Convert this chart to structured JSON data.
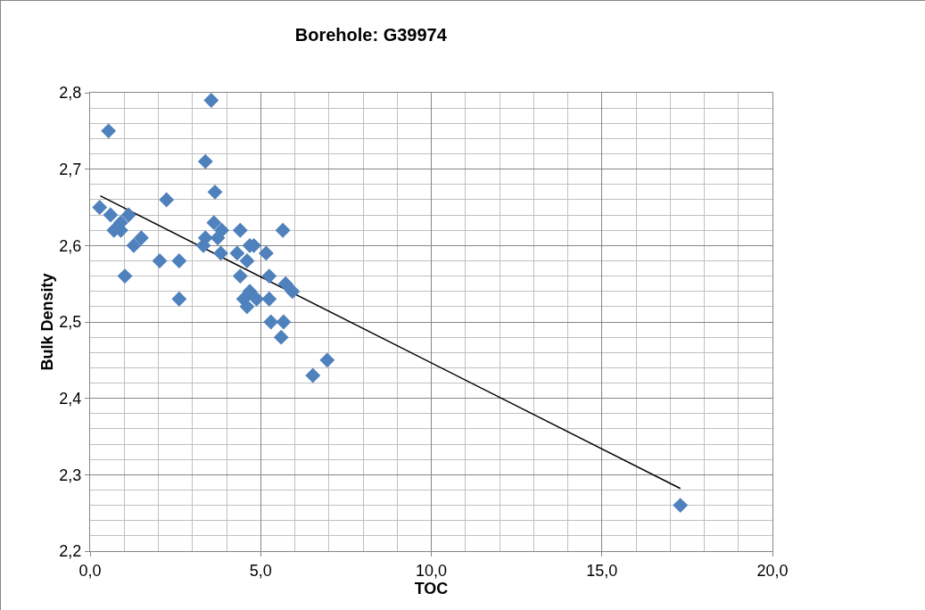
{
  "chart_data": {
    "type": "scatter",
    "title": "Borehole: G39974",
    "xlabel": "TOC",
    "ylabel": "Bulk Density",
    "xlim": [
      0,
      20
    ],
    "xticks": [
      {
        "value": 0,
        "label": "0,0"
      },
      {
        "value": 5,
        "label": "5,0"
      },
      {
        "value": 10,
        "label": "10,0"
      },
      {
        "value": 15,
        "label": "15,0"
      },
      {
        "value": 20,
        "label": "20,0"
      }
    ],
    "ylim": [
      2.2,
      2.8
    ],
    "yticks": [
      {
        "value": 2.2,
        "label": "2,2"
      },
      {
        "value": 2.3,
        "label": "2,3"
      },
      {
        "value": 2.4,
        "label": "2,4"
      },
      {
        "value": 2.5,
        "label": "2,5"
      },
      {
        "value": 2.6,
        "label": "2,6"
      },
      {
        "value": 2.7,
        "label": "2,7"
      },
      {
        "value": 2.8,
        "label": "2,8"
      }
    ],
    "grid": true,
    "marker": "diamond",
    "series": [
      {
        "color": "#4f81bd",
        "x": [
          0.54,
          3.55,
          3.38,
          3.66,
          2.24,
          0.28,
          0.6,
          1.13,
          0.9,
          0.7,
          0.9,
          1.28,
          1.5,
          3.63,
          3.86,
          3.38,
          3.32,
          3.74,
          3.83,
          2.04,
          2.61,
          1.02,
          2.61,
          4.4,
          5.65,
          4.8,
          4.31,
          5.16,
          4.6,
          4.68,
          4.4,
          4.68,
          5.25,
          5.73,
          5.93,
          4.5,
          4.88,
          5.25,
          4.6,
          5.3,
          5.67,
          5.6,
          6.53,
          6.95,
          17.3
        ],
        "values": [
          2.75,
          2.79,
          2.71,
          2.67,
          2.66,
          2.65,
          2.64,
          2.64,
          2.63,
          2.62,
          2.62,
          2.6,
          2.61,
          2.63,
          2.62,
          2.61,
          2.6,
          2.61,
          2.59,
          2.58,
          2.58,
          2.56,
          2.53,
          2.62,
          2.62,
          2.6,
          2.59,
          2.59,
          2.58,
          2.6,
          2.56,
          2.54,
          2.56,
          2.55,
          2.54,
          2.53,
          2.53,
          2.53,
          2.52,
          2.5,
          2.5,
          2.48,
          2.43,
          2.45,
          2.26
        ]
      },
      {
        "type": "line",
        "color": "#000000",
        "marker": "none",
        "x": [
          0.3,
          17.3
        ],
        "values": [
          2.665,
          2.282
        ]
      }
    ]
  }
}
